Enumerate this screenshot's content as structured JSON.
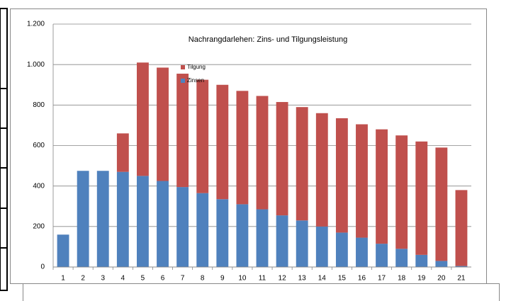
{
  "chart_data": {
    "type": "bar",
    "stacked": true,
    "title": "Nachrangdarlehen: Zins- und Tilgungsleistung",
    "categories": [
      "1",
      "2",
      "3",
      "4",
      "5",
      "6",
      "7",
      "8",
      "9",
      "10",
      "11",
      "12",
      "13",
      "14",
      "15",
      "16",
      "17",
      "18",
      "19",
      "20",
      "21"
    ],
    "series": [
      {
        "name": "Zinsen",
        "color": "#4f81bd",
        "values": [
          160,
          475,
          475,
          470,
          450,
          425,
          395,
          365,
          335,
          310,
          285,
          255,
          230,
          200,
          170,
          145,
          115,
          90,
          60,
          30,
          5
        ]
      },
      {
        "name": "Tilgung",
        "color": "#c0504d",
        "values": [
          0,
          0,
          0,
          190,
          560,
          560,
          560,
          560,
          565,
          560,
          560,
          560,
          560,
          560,
          565,
          560,
          565,
          560,
          560,
          560,
          375
        ]
      }
    ],
    "ylim": [
      0,
      1200
    ],
    "yticks": [
      0,
      200,
      400,
      600,
      800,
      {
        "value": 1000,
        "label": "1.000"
      },
      {
        "value": 1200,
        "label": "1.200"
      }
    ],
    "grid": true
  }
}
